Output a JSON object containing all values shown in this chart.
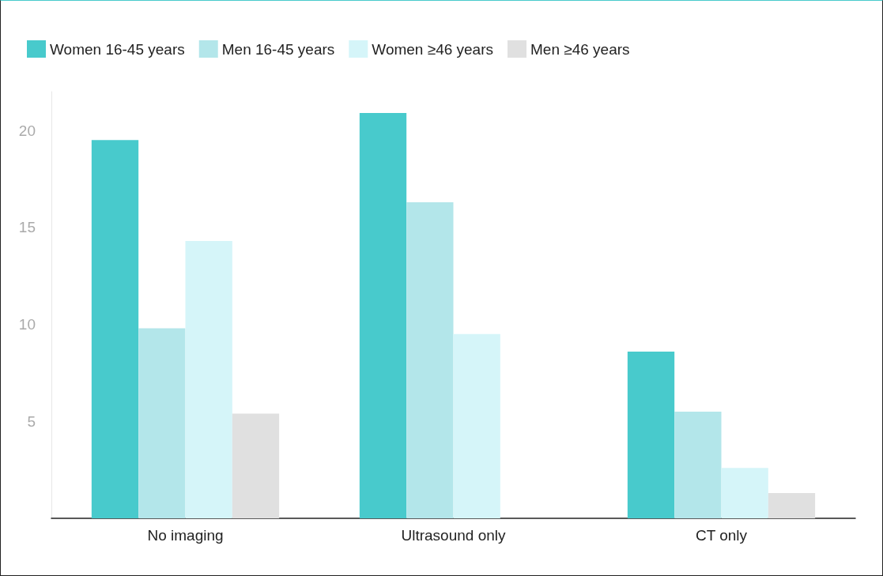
{
  "chart_data": {
    "type": "bar",
    "categories": [
      "No imaging",
      "Ultrasound only",
      "CT only"
    ],
    "series": [
      {
        "name": "Women 16-45 years",
        "color": "#48cacc",
        "values": [
          19.5,
          20.9,
          8.6
        ]
      },
      {
        "name": "Men 16-45 years",
        "color": "#b3e6ea",
        "values": [
          9.8,
          16.3,
          5.5
        ]
      },
      {
        "name": "Women ≥46 years",
        "color": "#d5f5f9",
        "values": [
          14.3,
          9.5,
          2.6
        ]
      },
      {
        "name": "Men ≥46 years",
        "color": "#e0e0e0",
        "values": [
          5.4,
          null,
          1.3
        ]
      }
    ],
    "ylim": [
      0,
      22
    ],
    "yticks": [
      5,
      10,
      15,
      20
    ],
    "grid": false,
    "legend": "top left"
  }
}
